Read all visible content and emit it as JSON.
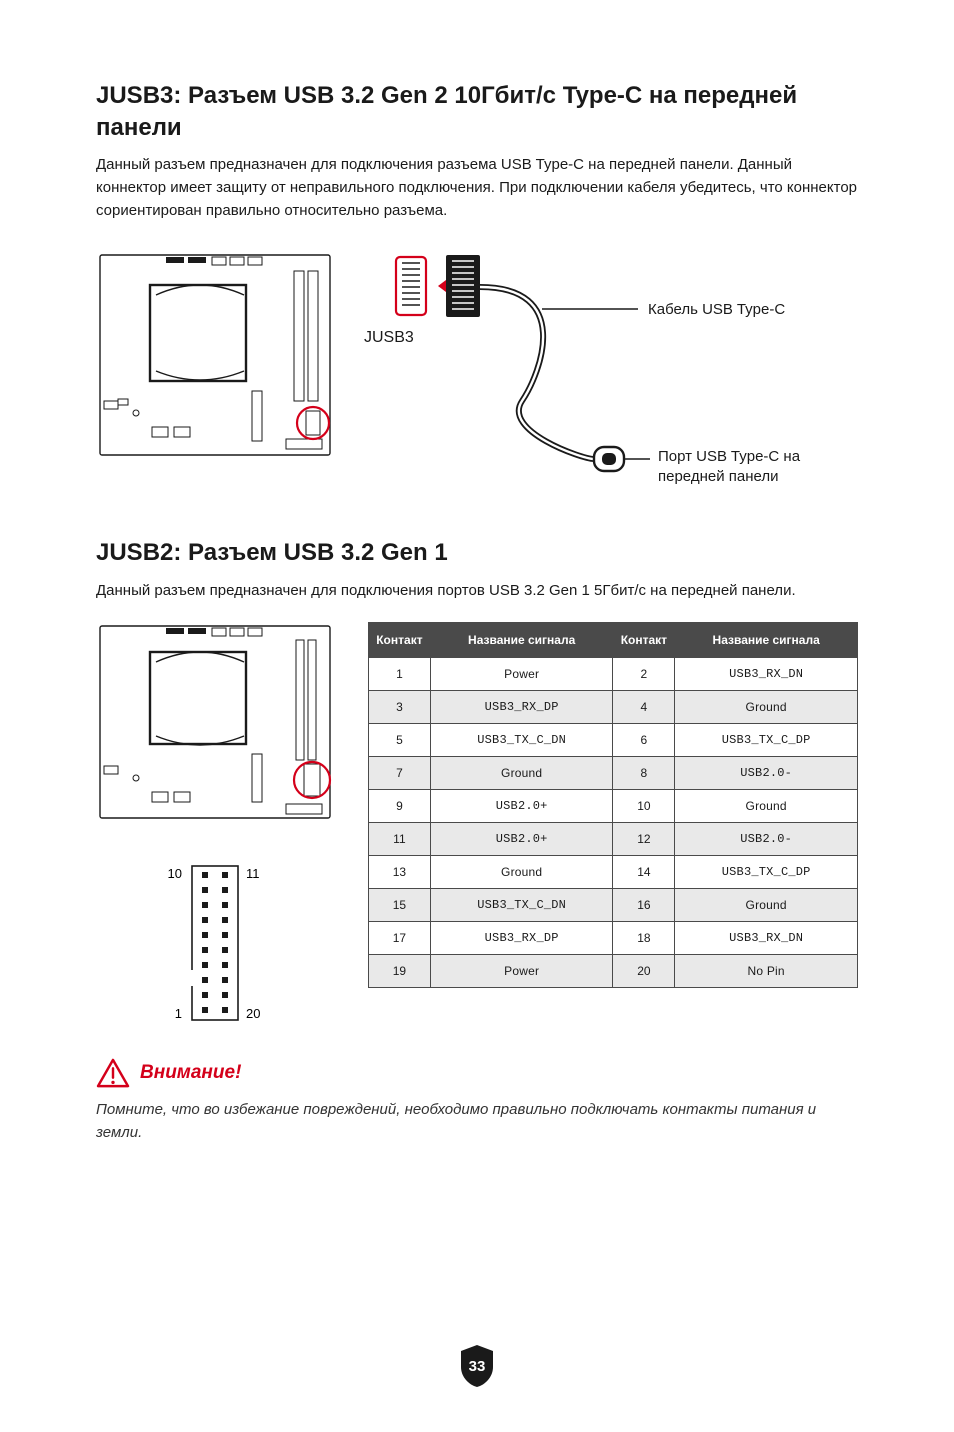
{
  "section1": {
    "title": "JUSB3: Разъем USB 3.2 Gen 2 10Гбит/с Type-C на передней панели",
    "p1": "Данный разъем предназначен для подключения разъема USB Type-C на передней панели. Данный коннектор имеет защиту от неправильного подключения. При подключении кабеля убедитесь, что коннектор сориентирован правильно относительно разъема.",
    "jusb3_label": "JUSB3",
    "cable_label": "Кабель USB Type-C",
    "port_label_l1": "Порт USB Type-C на",
    "port_label_l2": "передней панели"
  },
  "section2": {
    "title": "JUSB2: Разъем USB 3.2 Gen 1",
    "p1": "Данный разъем предназначен для подключения портов USB 3.2 Gen 1 5Гбит/с на передней панели."
  },
  "pinout": {
    "headers": [
      "Контакт",
      "Название сигнала",
      "Контакт",
      "Название сигнала"
    ],
    "rows": [
      [
        "1",
        "Power",
        "2",
        "USB3_RX_DN"
      ],
      [
        "3",
        "USB3_RX_DP",
        "4",
        "Ground"
      ],
      [
        "5",
        "USB3_TX_C_DN",
        "6",
        "USB3_TX_C_DP"
      ],
      [
        "7",
        "Ground",
        "8",
        "USB2.0-"
      ],
      [
        "9",
        "USB2.0+",
        "10",
        "Ground"
      ],
      [
        "11",
        "USB2.0+",
        "12",
        "USB2.0-"
      ],
      [
        "13",
        "Ground",
        "14",
        "USB3_TX_C_DP"
      ],
      [
        "15",
        "USB3_TX_C_DN",
        "16",
        "Ground"
      ],
      [
        "17",
        "USB3_RX_DP",
        "18",
        "USB3_RX_DN"
      ],
      [
        "19",
        "Power",
        "20",
        "No Pin"
      ]
    ],
    "pin_labels": {
      "tl": "10",
      "tr": "11",
      "bl": "1",
      "br": "20"
    }
  },
  "attention": {
    "title": "Внимание!",
    "body": "Помните, что во избежание повреждений, необходимо правильно подключать контакты питания и земли."
  },
  "page_number": "33",
  "colors": {
    "accent_red": "#d4001a",
    "table_header_bg": "#4a4a4a",
    "row_alt_bg": "#e9e9e9",
    "shield_bg": "#1a1a1a"
  }
}
